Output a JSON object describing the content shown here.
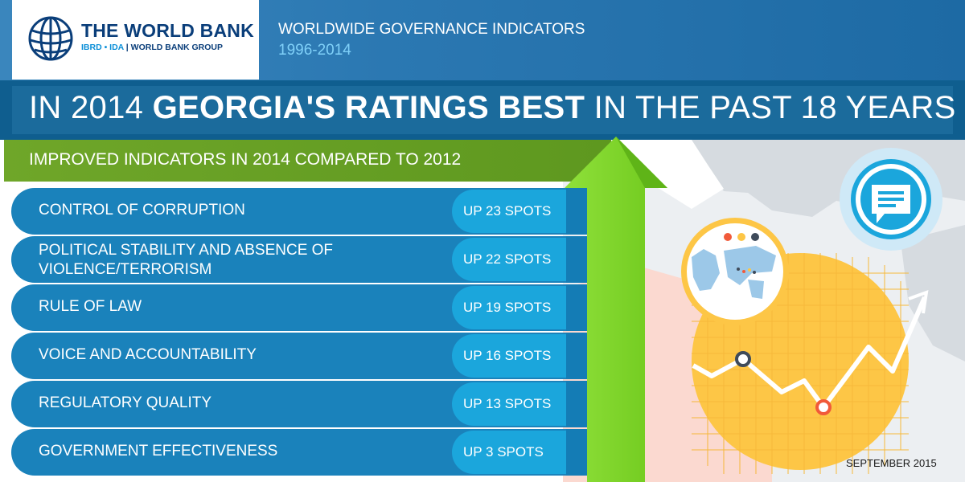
{
  "header": {
    "logo": {
      "name": "THE WORLD BANK",
      "sub_ibrd": "IBRD • IDA",
      "sub_separator": " | ",
      "sub_group": "WORLD BANK GROUP"
    },
    "title": "WORLDWIDE GOVERNANCE INDICATORS",
    "years": "1996-2014"
  },
  "headline": {
    "part1": "IN 2014 ",
    "bold": "GEORGIA'S RATINGS BEST",
    "part2": " IN THE PAST 18 YEARS"
  },
  "subtitle": "IMPROVED INDICATORS IN 2014 COMPARED TO 2012",
  "indicators": [
    {
      "label": "CONTROL OF CORRUPTION",
      "change": "UP 23 SPOTS"
    },
    {
      "label": "POLITICAL STABILITY AND ABSENCE OF VIOLENCE/TERRORISM",
      "change": "UP 22 SPOTS"
    },
    {
      "label": "RULE OF LAW",
      "change": "UP 19 SPOTS"
    },
    {
      "label": "VOICE AND ACCOUNTABILITY",
      "change": "UP 16 SPOTS"
    },
    {
      "label": "REGULATORY QUALITY",
      "change": "UP 13 SPOTS"
    },
    {
      "label": "GOVERNMENT EFFECTIVENESS",
      "change": "UP 3 SPOTS"
    }
  ],
  "footer": {
    "date": "SEPTEMBER 2015"
  },
  "icons": [
    "world-bank-globe-icon",
    "chat-bubble-icon",
    "world-map-icon",
    "line-chart-icon",
    "up-arrow-icon"
  ],
  "colors": {
    "header_blue": "#2b78b2",
    "headline_blue": "#0f5e8f",
    "row_blue": "#1a82bb",
    "badge_blue": "#1ba6dc",
    "subtitle_green": "#6fa629",
    "arrow_green": "#7ed321",
    "chart_yellow": "#fdc646"
  }
}
